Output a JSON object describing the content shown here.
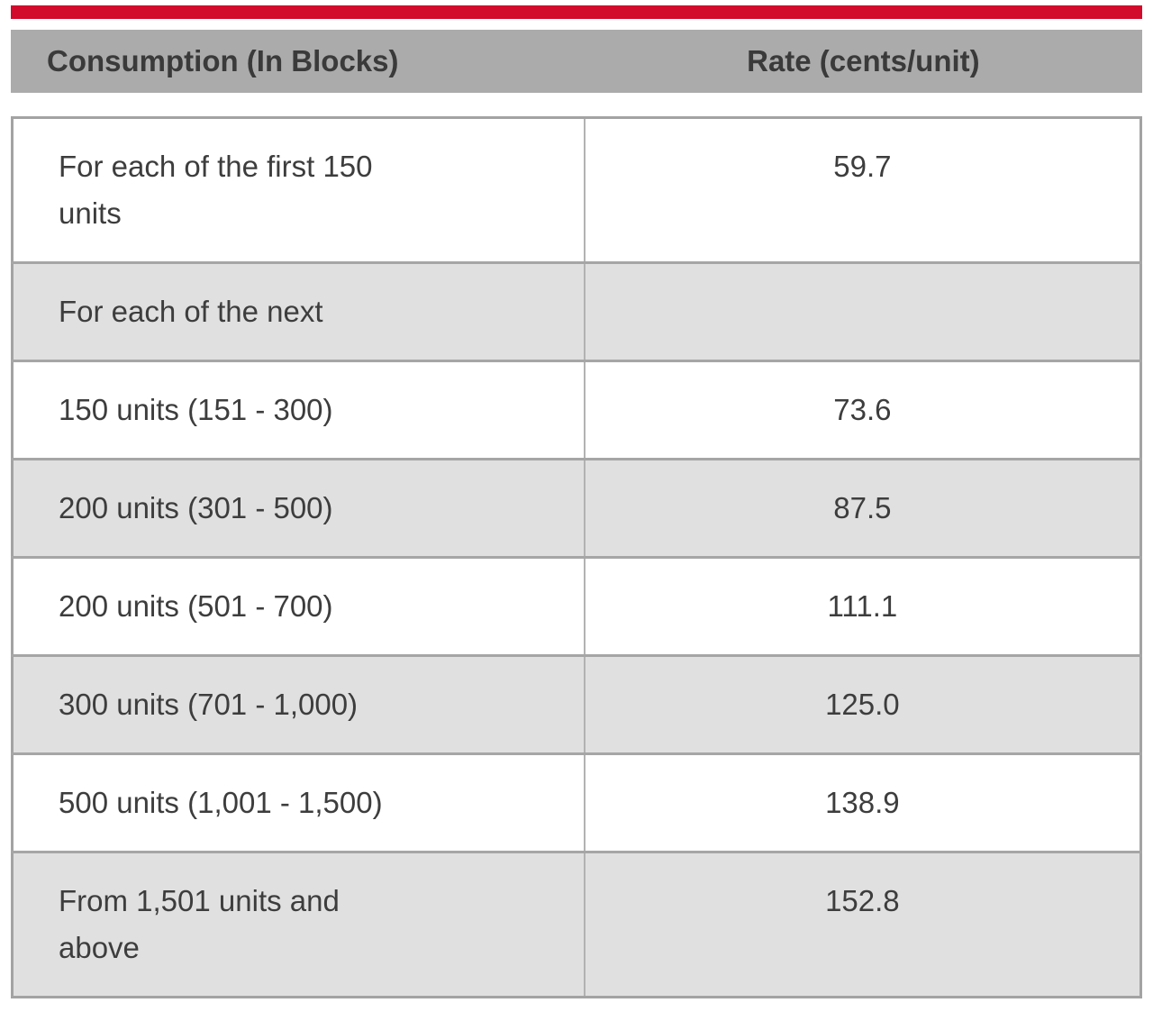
{
  "colors": {
    "accent_red": "#d20a2b",
    "header_bg": "#ababab",
    "row_alt_bg": "#e0e0e0",
    "border_gray": "#a5a5a5",
    "text_gray": "#3d3d3d"
  },
  "header": {
    "consumption_label": "Consumption (In Blocks)",
    "rate_label": "Rate (cents/unit)"
  },
  "table": {
    "rows": [
      {
        "consumption": "For each of the first 150\nunits",
        "rate": "59.7"
      },
      {
        "consumption": "For each of the next",
        "rate": ""
      },
      {
        "consumption": "150 units (151 - 300)",
        "rate": "73.6"
      },
      {
        "consumption": "200 units (301 - 500)",
        "rate": "87.5"
      },
      {
        "consumption": "200 units (501 - 700)",
        "rate": "111.1"
      },
      {
        "consumption": "300 units (701 - 1,000)",
        "rate": "125.0"
      },
      {
        "consumption": "500 units (1,001 - 1,500)",
        "rate": "138.9"
      },
      {
        "consumption": "From 1,501 units and\nabove",
        "rate": "152.8"
      }
    ]
  }
}
